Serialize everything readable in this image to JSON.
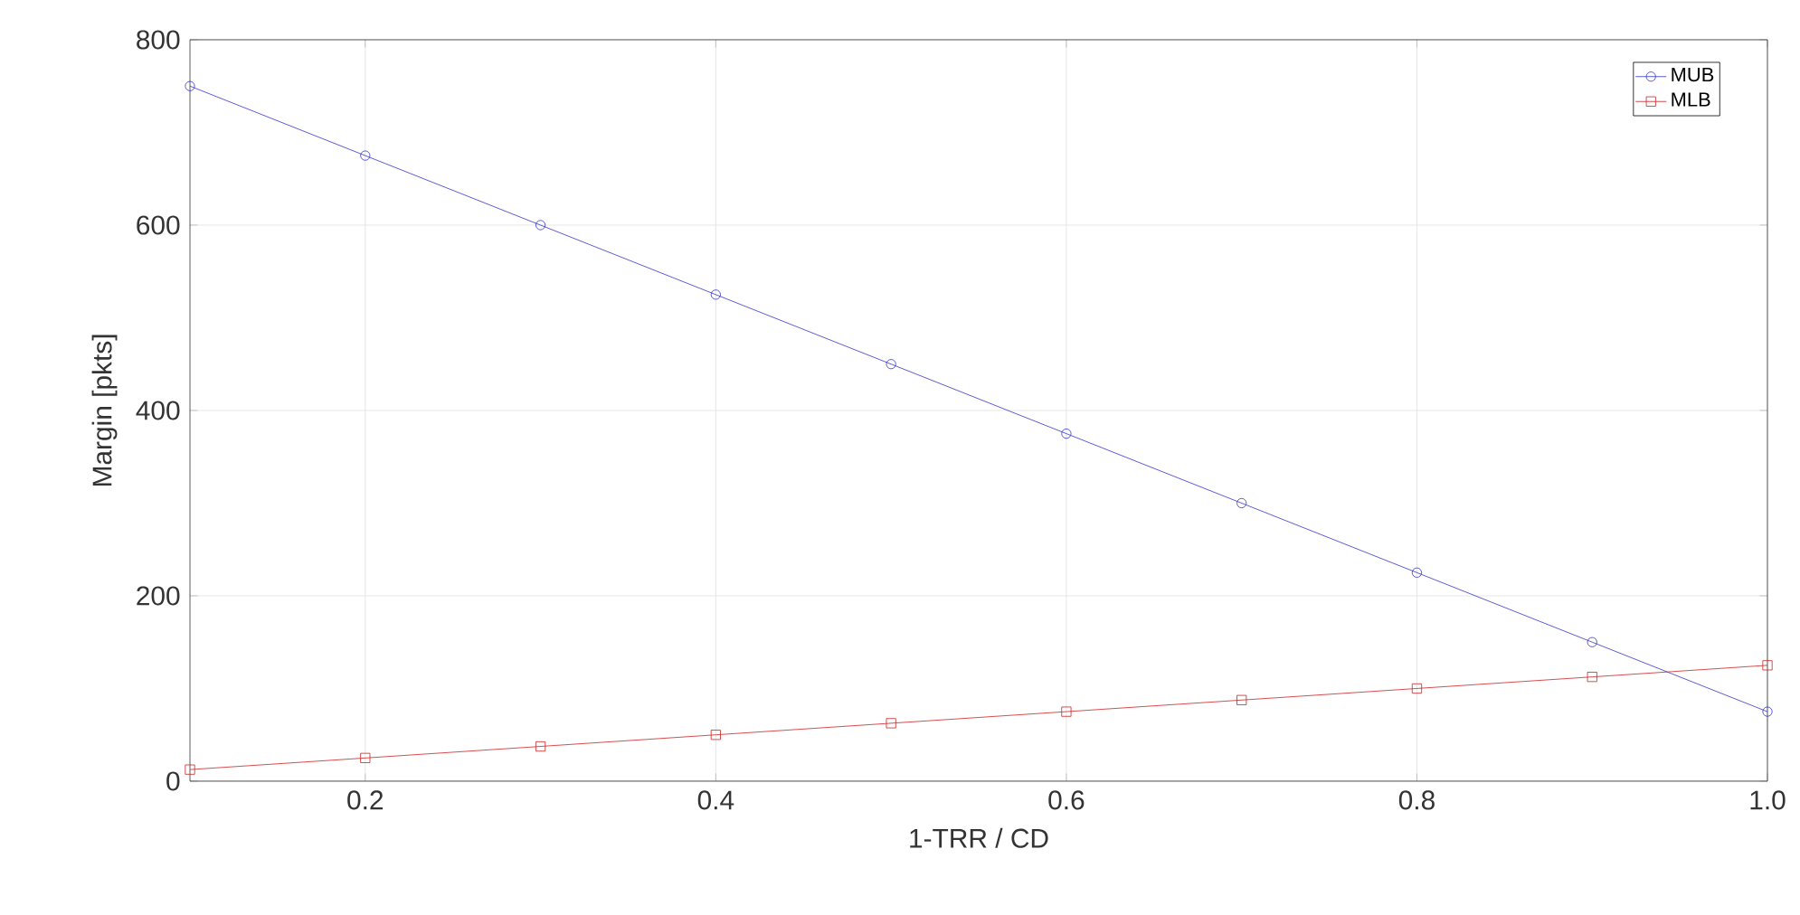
{
  "chart_data": {
    "type": "line",
    "xlabel": "1-TRR / CD",
    "ylabel": "Margin [pkts]",
    "x": [
      0.1,
      0.2,
      0.3,
      0.4,
      0.5,
      0.6,
      0.7,
      0.8,
      0.9,
      1.0
    ],
    "series": [
      {
        "name": "MUB",
        "color": "#3333cc",
        "marker": "circle",
        "values": [
          750,
          675,
          600,
          525,
          450,
          375,
          300,
          225,
          150,
          75
        ]
      },
      {
        "name": "MLB",
        "color": "#cc2222",
        "marker": "square",
        "values": [
          12.5,
          25,
          37.5,
          50,
          62.5,
          75,
          87.5,
          100,
          112.5,
          125
        ]
      }
    ],
    "xlim": [
      0.1,
      1.0
    ],
    "ylim": [
      0,
      800
    ],
    "xticks": [
      0.2,
      0.4,
      0.6,
      0.8,
      {
        "value": 1.0,
        "label": "1.0"
      }
    ],
    "yticks": [
      0,
      200,
      400,
      600,
      800
    ],
    "grid": true,
    "legend": "top right",
    "line_style": "solid"
  }
}
